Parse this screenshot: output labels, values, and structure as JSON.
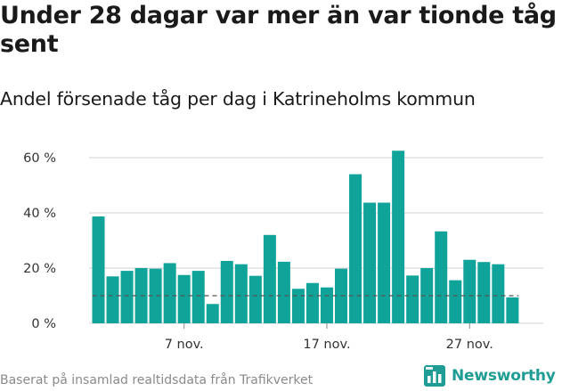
{
  "title": "Under 28 dagar var mer än var tionde tåg sent",
  "subtitle": "Andel försenade tåg per dag i Katrineholms kommun",
  "source": "Baserat på insamlad realtidsdata från Trafikverket",
  "brand": {
    "name": "Newsworthy",
    "icon": "newsworthy-logo-icon",
    "color": "#1f9c94"
  },
  "colors": {
    "bar": "#0fa39a",
    "grid": "#dcdcdc",
    "reference": "#555555",
    "axis_text": "#333333"
  },
  "chart_data": {
    "type": "bar",
    "title": "Under 28 dagar var mer än var tionde tåg sent",
    "subtitle": "Andel försenade tåg per dag i Katrineholms kommun",
    "xlabel": "",
    "ylabel": "",
    "x": [
      "1 nov.",
      "2 nov.",
      "3 nov.",
      "4 nov.",
      "5 nov.",
      "6 nov.",
      "7 nov.",
      "8 nov.",
      "9 nov.",
      "10 nov.",
      "11 nov.",
      "12 nov.",
      "13 nov.",
      "14 nov.",
      "15 nov.",
      "16 nov.",
      "17 nov.",
      "18 nov.",
      "19 nov.",
      "20 nov.",
      "21 nov.",
      "22 nov.",
      "23 nov.",
      "24 nov.",
      "25 nov.",
      "26 nov.",
      "27 nov.",
      "28 nov.",
      "29 nov.",
      "30 nov."
    ],
    "values": [
      38.7,
      17,
      19,
      20,
      19.8,
      21.8,
      17.5,
      19,
      7,
      22.6,
      21.4,
      17.2,
      32,
      22.3,
      12.5,
      14.6,
      13,
      19.8,
      54,
      43.7,
      43.7,
      62.5,
      17.3,
      20,
      33.3,
      15.6,
      23,
      22.2,
      21.4,
      9.4
    ],
    "x_tick_labels": [
      {
        "label": "7 nov.",
        "index": 6
      },
      {
        "label": "17 nov.",
        "index": 16
      },
      {
        "label": "27 nov.",
        "index": 26
      }
    ],
    "y_ticks": [
      {
        "value": 0,
        "label": "0 %"
      },
      {
        "value": 20,
        "label": "20 %"
      },
      {
        "value": 40,
        "label": "40 %"
      },
      {
        "value": 60,
        "label": "60 %"
      }
    ],
    "ylim": [
      0,
      65
    ],
    "reference_line": {
      "value": 10,
      "style": "dashed"
    },
    "grid": true
  }
}
